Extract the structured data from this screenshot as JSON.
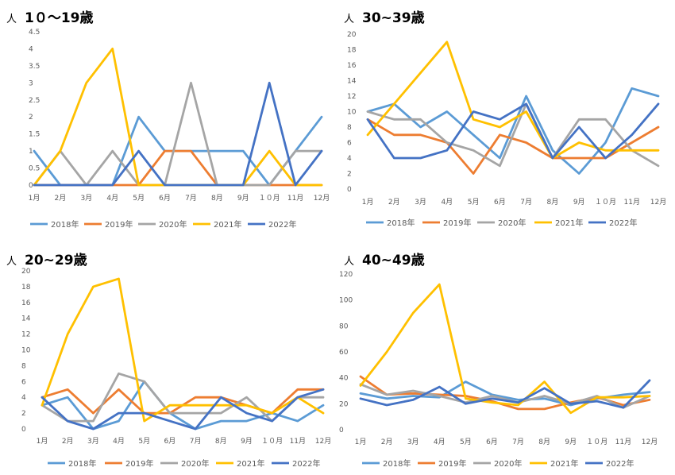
{
  "months": [
    "1月",
    "2月",
    "3月",
    "4月",
    "5月",
    "6月",
    "7月",
    "8月",
    "9月",
    "１０月",
    "11月",
    "12月"
  ],
  "series_colors": [
    "#5b9bd5",
    "#ed7d31",
    "#a5a5a5",
    "#ffc000",
    "#4472c4"
  ],
  "chart_data": [
    {
      "type": "line",
      "unit_label": "人",
      "title": "1０〜19歳",
      "ylim": [
        0,
        4.5
      ],
      "yticks": [
        "0",
        "0.5",
        "1",
        "1.5",
        "2",
        "2.5",
        "3",
        "3.5",
        "4",
        "4.5"
      ],
      "legend_position": "bottom",
      "grid": false,
      "series": [
        {
          "name": "2018年",
          "values": [
            1,
            0,
            0,
            0,
            2,
            1,
            1,
            1,
            1,
            0,
            1,
            2
          ]
        },
        {
          "name": "2019年",
          "values": [
            0,
            0,
            0,
            0,
            0,
            1,
            1,
            0,
            0,
            0,
            0,
            0
          ]
        },
        {
          "name": "2020年",
          "values": [
            0,
            1,
            0,
            1,
            0,
            0,
            3,
            0,
            0,
            0,
            1,
            1
          ]
        },
        {
          "name": "2021年",
          "values": [
            0,
            1,
            3,
            4,
            0,
            0,
            0,
            0,
            0,
            1,
            0,
            0
          ]
        },
        {
          "name": "2022年",
          "values": [
            0,
            0,
            0,
            0,
            1,
            0,
            0,
            0,
            0,
            3,
            0,
            1
          ]
        }
      ]
    },
    {
      "type": "line",
      "unit_label": "人",
      "title": "30~39歳",
      "ylim": [
        0,
        20
      ],
      "yticks": [
        "0",
        "2",
        "4",
        "6",
        "8",
        "10",
        "12",
        "14",
        "16",
        "18",
        "20"
      ],
      "legend_position": "bottom",
      "grid": false,
      "series": [
        {
          "name": "2018年",
          "values": [
            10,
            11,
            8,
            10,
            7,
            4,
            12,
            5,
            2,
            6,
            13,
            12
          ]
        },
        {
          "name": "2019年",
          "values": [
            9,
            7,
            7,
            6,
            2,
            7,
            6,
            4,
            4,
            4,
            6,
            8
          ]
        },
        {
          "name": "2020年",
          "values": [
            10,
            9,
            9,
            6,
            5,
            3,
            11,
            4,
            9,
            9,
            5,
            3
          ]
        },
        {
          "name": "2021年",
          "values": [
            7,
            11,
            15,
            19,
            9,
            8,
            10,
            4,
            6,
            5,
            5,
            5
          ]
        },
        {
          "name": "2022年",
          "values": [
            9,
            4,
            4,
            5,
            10,
            9,
            11,
            4,
            8,
            4,
            7,
            11
          ]
        }
      ]
    },
    {
      "type": "line",
      "unit_label": "人",
      "title": "20~29歳",
      "ylim": [
        0,
        20
      ],
      "yticks": [
        "0",
        "2",
        "4",
        "6",
        "8",
        "10",
        "12",
        "14",
        "16",
        "18",
        "20"
      ],
      "legend_position": "bottom",
      "grid": false,
      "series": [
        {
          "name": "2018年",
          "values": [
            3,
            4,
            0,
            1,
            6,
            2,
            0,
            1,
            1,
            2,
            1,
            3
          ]
        },
        {
          "name": "2019年",
          "values": [
            4,
            5,
            2,
            5,
            2,
            2,
            4,
            4,
            3,
            2,
            5,
            5
          ]
        },
        {
          "name": "2020年",
          "values": [
            3,
            1,
            1,
            7,
            6,
            2,
            2,
            2,
            4,
            1,
            4,
            4
          ]
        },
        {
          "name": "2021年",
          "values": [
            3,
            12,
            18,
            19,
            1,
            3,
            3,
            3,
            3,
            2,
            4,
            2
          ]
        },
        {
          "name": "2022年",
          "values": [
            4,
            1,
            0,
            2,
            2,
            1,
            0,
            4,
            2,
            1,
            4,
            5
          ]
        }
      ]
    },
    {
      "type": "line",
      "unit_label": "人",
      "title": "40~49歳",
      "ylim": [
        0,
        120
      ],
      "yticks": [
        "0",
        "20",
        "40",
        "60",
        "80",
        "100",
        "120"
      ],
      "legend_position": "bottom",
      "grid": false,
      "series": [
        {
          "name": "2018年",
          "values": [
            28,
            24,
            26,
            25,
            37,
            27,
            23,
            24,
            19,
            24,
            27,
            29
          ]
        },
        {
          "name": "2019年",
          "values": [
            41,
            27,
            28,
            27,
            26,
            22,
            16,
            16,
            21,
            25,
            19,
            23
          ]
        },
        {
          "name": "2020年",
          "values": [
            35,
            27,
            30,
            26,
            21,
            26,
            21,
            26,
            20,
            26,
            17,
            26
          ]
        },
        {
          "name": "2021年",
          "values": [
            34,
            60,
            90,
            112,
            24,
            21,
            19,
            37,
            13,
            25,
            25,
            26
          ]
        },
        {
          "name": "2022年",
          "values": [
            24,
            19,
            23,
            33,
            20,
            24,
            21,
            32,
            20,
            22,
            17,
            38
          ]
        }
      ]
    }
  ]
}
